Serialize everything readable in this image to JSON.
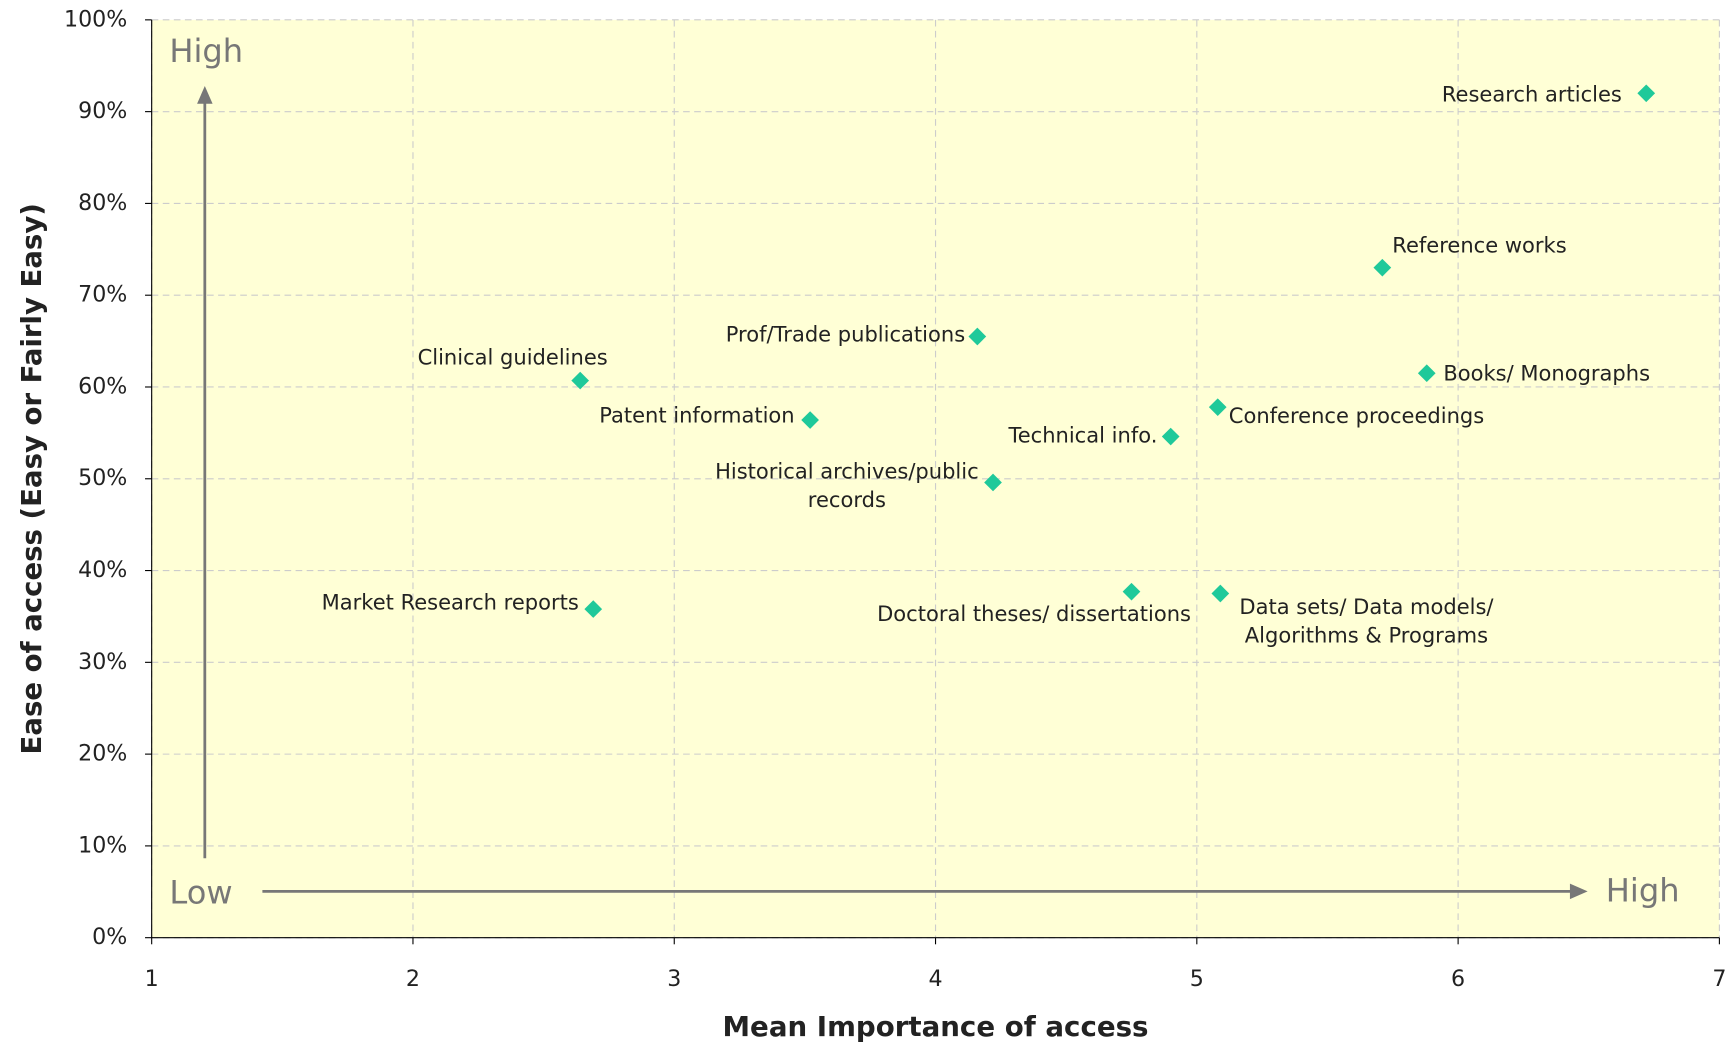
{
  "chart_data": {
    "type": "scatter",
    "x_label": "Mean Importance of access",
    "y_label": "Ease of access (Easy or Fairly Easy)",
    "color": "#1fc99a",
    "grid": true,
    "xlim": [
      1,
      7
    ],
    "ylim": [
      0,
      100
    ],
    "xticks": [
      1,
      2,
      3,
      4,
      5,
      6,
      7
    ],
    "yticks": [
      {
        "value": 0,
        "label": "0%"
      },
      {
        "value": 10,
        "label": "10%"
      },
      {
        "value": 20,
        "label": "20%"
      },
      {
        "value": 30,
        "label": "30%"
      },
      {
        "value": 40,
        "label": "40%"
      },
      {
        "value": 50,
        "label": "50%"
      },
      {
        "value": 60,
        "label": "60%"
      },
      {
        "value": 70,
        "label": "70%"
      },
      {
        "value": 80,
        "label": "80%"
      },
      {
        "value": 90,
        "label": "90%"
      },
      {
        "value": 100,
        "label": "100%"
      }
    ],
    "labels": [
      [
        "Research articles"
      ],
      [
        "Reference works"
      ],
      [
        "Books/ Monographs"
      ],
      [
        "Conference proceedings"
      ],
      [
        "Technical info."
      ],
      [
        "Data sets/ Data models/",
        "Algorithms & Programs"
      ],
      [
        "Doctoral theses/ dissertations"
      ],
      [
        "Historical archives/public",
        "records"
      ],
      [
        "Prof/Trade publications"
      ],
      [
        "Patent information"
      ],
      [
        "Clinical guidelines"
      ],
      [
        "Market Research reports"
      ]
    ],
    "x": [
      6.72,
      5.71,
      5.88,
      5.08,
      4.9,
      5.09,
      4.75,
      4.22,
      4.16,
      3.52,
      2.64,
      2.69
    ],
    "values": [
      92,
      73,
      61.5,
      57.8,
      54.6,
      37.5,
      37.7,
      49.6,
      65.5,
      56.4,
      60.7,
      35.8
    ],
    "annotations": {
      "y_high": "High",
      "low": "Low",
      "x_high": "High"
    }
  }
}
